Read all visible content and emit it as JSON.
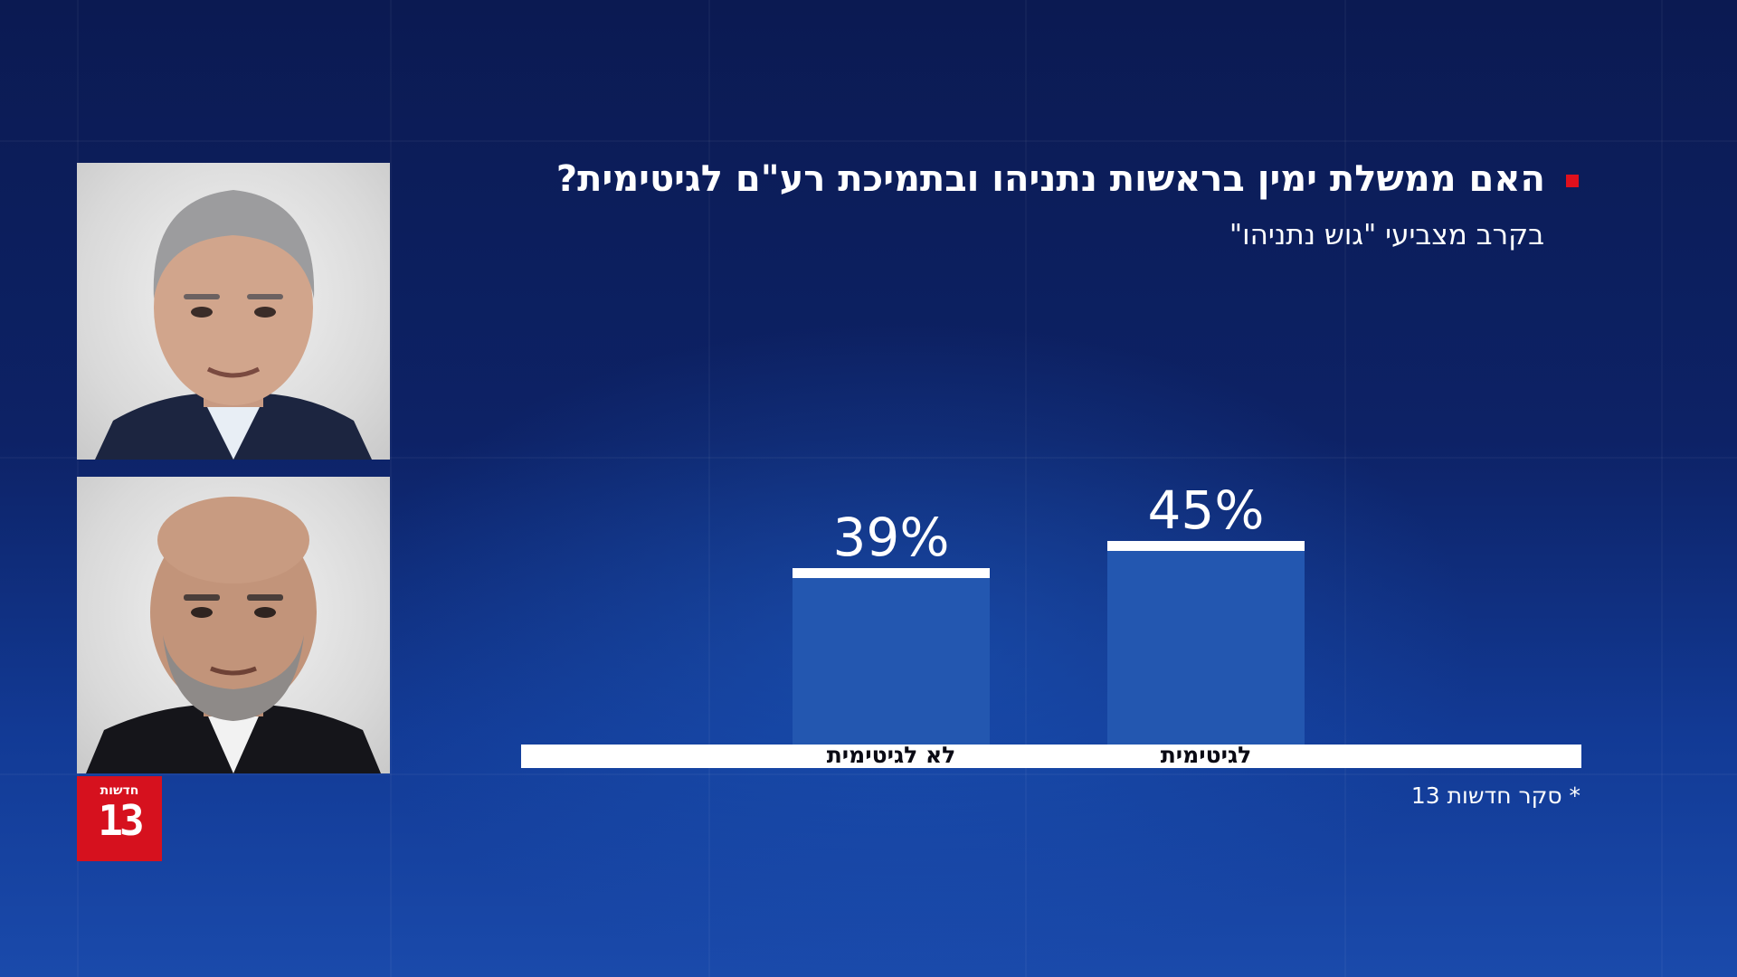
{
  "header": {
    "title": "האם ממשלת ימין בראשות נתניהו ובתמיכת רע\"ם לגיטימית?",
    "subtitle": "בקרב מצביעי \"גוש נתניהו\""
  },
  "footer": {
    "note": "* סקר חדשות 13"
  },
  "logo": {
    "word": "חדשות",
    "number": "13"
  },
  "colors": {
    "bar": "#2357b0",
    "bar_cap": "#ffffff",
    "baseline": "#ffffff",
    "bullet": "#e0101c",
    "logo": "#d6111e"
  },
  "chart_data": {
    "type": "bar",
    "categories": [
      "לא לגיטימית",
      "לגיטימית"
    ],
    "values": [
      39,
      45
    ],
    "value_labels": [
      "39%",
      "45%"
    ],
    "title": "האם ממשלת ימין בראשות נתניהו ובתמיכת רע\"ם לגיטימית?",
    "subtitle": "בקרב מצביעי \"גוש נתניהו\"",
    "xlabel": "",
    "ylabel": "",
    "ylim": [
      0,
      100
    ],
    "unit": "%",
    "grid": false,
    "legend": "none"
  }
}
